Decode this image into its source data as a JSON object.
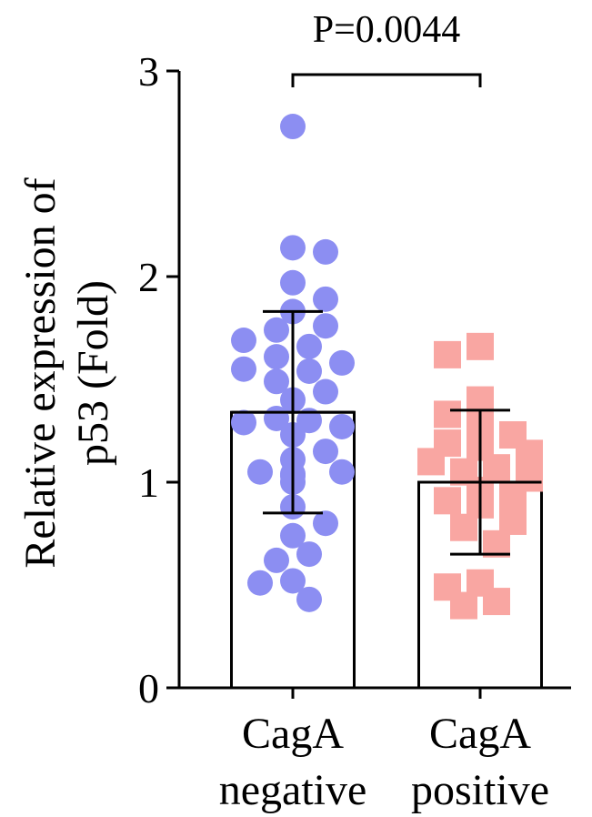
{
  "chart_data": {
    "type": "bar",
    "annotation": "P=0.0044",
    "ylabel": [
      "Relative expression of",
      "p53 (Fold)"
    ],
    "categories": [
      [
        "CagA",
        "negative"
      ],
      [
        "CagA",
        "positive"
      ]
    ],
    "values": [
      1.34,
      1.0
    ],
    "errors": [
      0.49,
      0.35
    ],
    "points": [
      [
        2.73,
        2.14,
        2.12,
        1.97,
        1.89,
        1.83,
        1.76,
        1.74,
        1.69,
        1.66,
        1.61,
        1.58,
        1.55,
        1.54,
        1.49,
        1.44,
        1.4,
        1.31,
        1.3,
        1.29,
        1.27,
        1.23,
        1.15,
        1.11,
        1.05,
        1.05,
        1.04,
        1.03,
        1.0,
        0.88,
        0.8,
        0.74,
        0.65,
        0.62,
        0.52,
        0.51,
        0.43
      ],
      [
        1.66,
        1.62,
        1.4,
        1.33,
        1.27,
        1.23,
        1.19,
        1.17,
        1.14,
        1.1,
        1.07,
        1.05,
        1.02,
        0.96,
        0.93,
        0.91,
        0.89,
        0.81,
        0.78,
        0.7,
        0.51,
        0.49,
        0.42,
        0.4
      ]
    ],
    "point_colors": [
      "#8c8ef2",
      "#f9a6a2"
    ],
    "point_shapes": [
      "circle",
      "square"
    ],
    "bar_color": "#ffffff",
    "ylim": [
      0,
      3
    ],
    "yticks": [
      0,
      1,
      2,
      3
    ]
  }
}
